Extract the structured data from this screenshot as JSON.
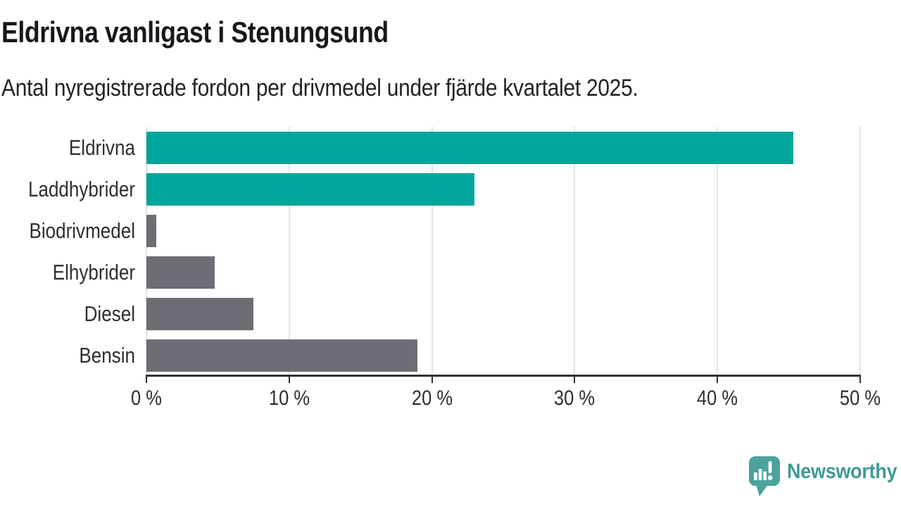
{
  "header": {
    "title": "Eldrivna vanligast i Stenungsund",
    "subtitle": "Antal nyregistrerade fordon per drivmedel under fjärde kvartalet 2025."
  },
  "chart_data": {
    "type": "bar",
    "orientation": "horizontal",
    "title": "Eldrivna vanligast i Stenungsund",
    "subtitle": "Antal nyregistrerade fordon per drivmedel under fjärde kvartalet 2025.",
    "categories": [
      "Eldrivna",
      "Laddhybrider",
      "Biodrivmedel",
      "Elhybrider",
      "Diesel",
      "Bensin"
    ],
    "values": [
      45.3,
      23.0,
      0.7,
      4.8,
      7.5,
      19.0
    ],
    "unit": "%",
    "xlabel": "",
    "ylabel": "",
    "xlim": [
      0,
      50
    ],
    "x_ticks": [
      0,
      10,
      20,
      30,
      40,
      50
    ],
    "x_tick_labels": [
      "0 %",
      "10 %",
      "20 %",
      "30 %",
      "40 %",
      "50 %"
    ],
    "grid": true,
    "legend": "none",
    "bar_colors": [
      "#00a69c",
      "#00a69c",
      "#6e6d75",
      "#6e6d75",
      "#6e6d75",
      "#6e6d75"
    ],
    "highlight_color": "#00a69c",
    "base_color": "#6e6d75"
  },
  "footer": {
    "brand": "Newsworthy",
    "logo_icon": "speech-bubble-bar-chart-icon",
    "brand_color": "#3f9a95",
    "icon_color": "#4aa39d"
  },
  "colors": {
    "gridline": "#e4e4e4",
    "axis": "#303036",
    "title_text": "#16181c",
    "label_text": "#2d2f33"
  }
}
